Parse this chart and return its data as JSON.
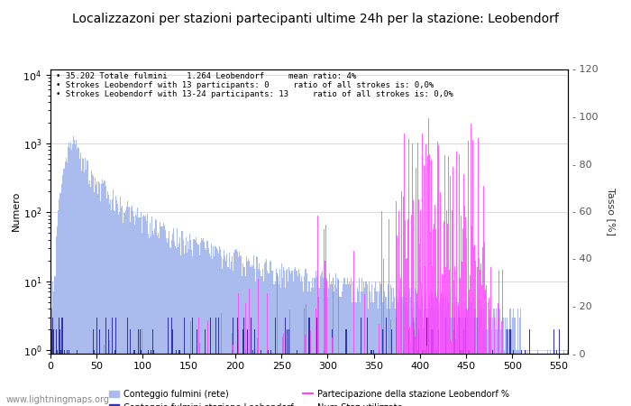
{
  "title": "Localizzazoni per stazioni partecipanti ultime 24h per la stazione: Leobendorf",
  "ylabel_left": "Numero",
  "ylabel_right": "Tasso [%]",
  "annotation_lines": [
    "35.202 Totale fulmini    1.264 Leobendorf     mean ratio: 4%",
    "Strokes Leobendorf with 13 participants: 0     ratio of all strokes is: 0,0%",
    "Strokes Leobendorf with 13-24 participants: 13     ratio of all strokes is: 0,0%"
  ],
  "xlim": [
    0,
    560
  ],
  "ylim_right": [
    0,
    120
  ],
  "yticks_right": [
    0,
    20,
    40,
    60,
    80,
    100,
    120
  ],
  "bar_color_network": "#aabbee",
  "bar_color_station": "#3333aa",
  "line_color_participation": "#ff44ff",
  "background_color": "#ffffff",
  "watermark": "www.lightningmaps.org",
  "figsize": [
    7.0,
    4.5
  ],
  "dpi": 100,
  "title_fontsize": 10,
  "annotation_fontsize": 7,
  "axis_fontsize": 8
}
